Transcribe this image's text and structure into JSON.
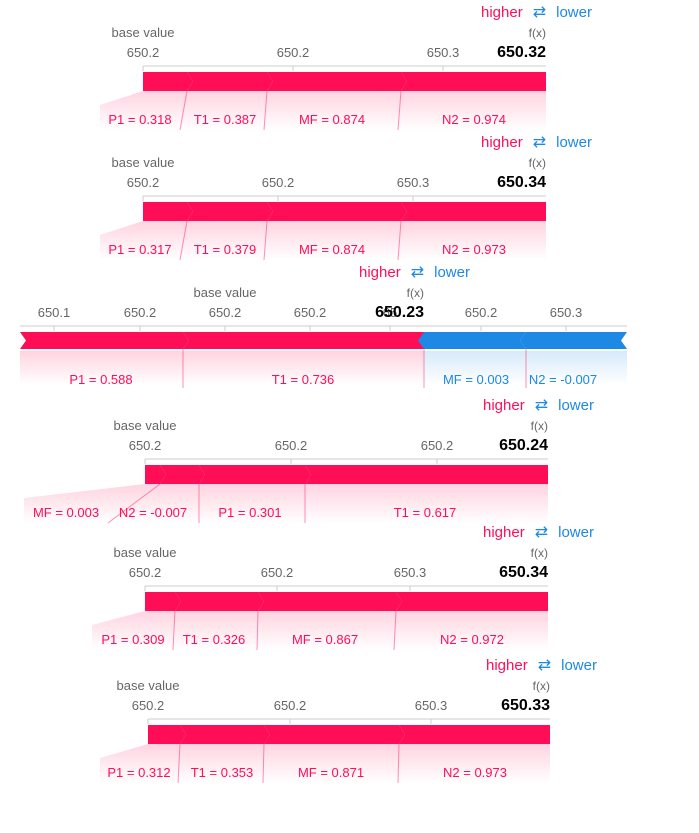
{
  "legend": {
    "higher": "higher",
    "arrows": "⇄",
    "lower": "lower"
  },
  "labels": {
    "base_value": "base value",
    "fx": "f(x)"
  },
  "colors": {
    "positive": "#ff0d57",
    "negative": "#1e88e5",
    "axis": "#cccccc",
    "tick_text": "#666666"
  },
  "chart_data": [
    {
      "type": "force",
      "output": "650.32",
      "ticks": [
        "650.2",
        "650.2",
        "650.3"
      ],
      "features": [
        {
          "label": "P1 = 0.318",
          "effect": "positive"
        },
        {
          "label": "T1 = 0.387",
          "effect": "positive"
        },
        {
          "label": "MF = 0.874",
          "effect": "positive"
        },
        {
          "label": "N2 = 0.974",
          "effect": "positive"
        }
      ]
    },
    {
      "type": "force",
      "output": "650.34",
      "ticks": [
        "650.2",
        "650.2",
        "650.3"
      ],
      "features": [
        {
          "label": "P1 = 0.317",
          "effect": "positive"
        },
        {
          "label": "T1 = 0.379",
          "effect": "positive"
        },
        {
          "label": "MF = 0.874",
          "effect": "positive"
        },
        {
          "label": "N2 = 0.973",
          "effect": "positive"
        }
      ]
    },
    {
      "type": "force",
      "output": "650.23",
      "ticks": [
        "650.1",
        "650.2",
        "650.2",
        "650.2",
        "65",
        "650.2",
        "650.3"
      ],
      "features": [
        {
          "label": "P1 = 0.588",
          "effect": "positive"
        },
        {
          "label": "T1 = 0.736",
          "effect": "positive"
        },
        {
          "label": "MF = 0.003",
          "effect": "negative"
        },
        {
          "label": "N2 = -0.007",
          "effect": "negative"
        }
      ]
    },
    {
      "type": "force",
      "output": "650.24",
      "ticks": [
        "650.2",
        "650.2",
        "650.2"
      ],
      "features": [
        {
          "label": "MF = 0.003",
          "effect": "positive"
        },
        {
          "label": "N2 = -0.007",
          "effect": "positive"
        },
        {
          "label": "P1 = 0.301",
          "effect": "positive"
        },
        {
          "label": "T1 = 0.617",
          "effect": "positive"
        }
      ]
    },
    {
      "type": "force",
      "output": "650.34",
      "ticks": [
        "650.2",
        "650.2",
        "650.3"
      ],
      "features": [
        {
          "label": "P1 = 0.309",
          "effect": "positive"
        },
        {
          "label": "T1 = 0.326",
          "effect": "positive"
        },
        {
          "label": "MF = 0.867",
          "effect": "positive"
        },
        {
          "label": "N2 = 0.972",
          "effect": "positive"
        }
      ]
    },
    {
      "type": "force",
      "output": "650.33",
      "ticks": [
        "650.2",
        "650.2",
        "650.3"
      ],
      "features": [
        {
          "label": "P1 = 0.312",
          "effect": "positive"
        },
        {
          "label": "T1 = 0.353",
          "effect": "positive"
        },
        {
          "label": "MF = 0.871",
          "effect": "positive"
        },
        {
          "label": "N2 = 0.973",
          "effect": "positive"
        }
      ]
    }
  ]
}
